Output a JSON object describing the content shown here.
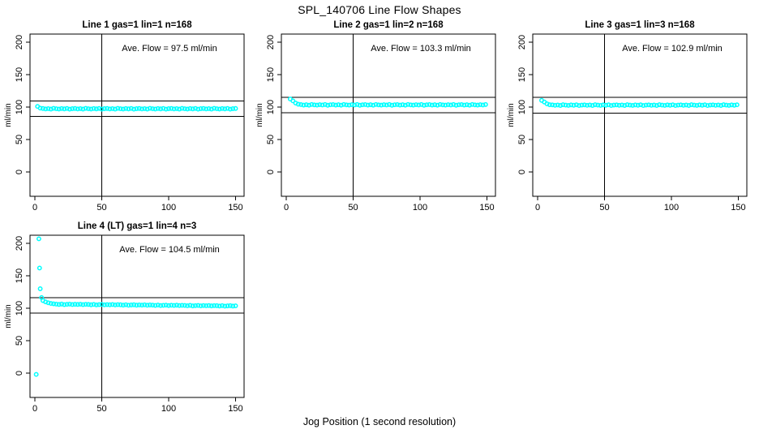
{
  "figure_title": "SPL_140706  Line Flow Shapes",
  "x_axis_label": "Jog Position (1 second resolution)",
  "y_axis_label": "ml/min",
  "colors": {
    "points": "#00ffff",
    "axis": "#000000",
    "background": "#ffffff"
  },
  "chart_data": [
    {
      "type": "scatter",
      "title": "Line 1 gas=1 lin=1 n=168",
      "annotation": "Ave. Flow =  97.5  ml/min",
      "ave_flow_ml_min": 97.5,
      "n_points": 168,
      "x_ticks": [
        0,
        50,
        100,
        150
      ],
      "y_ticks": [
        0,
        50,
        100,
        150,
        200
      ],
      "xlim": [
        -4,
        156
      ],
      "ylim": [
        -38,
        218
      ],
      "grid": false,
      "vertical_ref_line_x": 50,
      "upper_limit": 109.5,
      "lower_limit": 85.5,
      "x_start": 2,
      "x_step": 2,
      "y_values": [
        101.0,
        98.4,
        97.8,
        97.1,
        97.6,
        96.9,
        98.0,
        97.4,
        97.0,
        97.7,
        97.2,
        97.9,
        96.8,
        97.5,
        97.8,
        97.1,
        97.6,
        96.9,
        98.0,
        97.4,
        97.0,
        97.7,
        97.2,
        97.9,
        96.8,
        97.5,
        97.8,
        97.1,
        97.6,
        96.9,
        98.0,
        97.4,
        97.0,
        97.7,
        97.2,
        97.9,
        96.8,
        97.5,
        97.8,
        97.1,
        97.6,
        96.9,
        98.0,
        97.4,
        97.0,
        97.7,
        97.2,
        97.9,
        96.8,
        97.5,
        97.8,
        97.1,
        97.6,
        96.9,
        98.0,
        97.4,
        97.0,
        97.7,
        97.2,
        97.9,
        96.8,
        97.5,
        97.8,
        97.1,
        97.6,
        96.9,
        98.0,
        97.4,
        97.0,
        97.7,
        97.2,
        97.9,
        96.8,
        97.5,
        97.8
      ],
      "extra_points": []
    },
    {
      "type": "scatter",
      "title": "Line 2 gas=1 lin=2 n=168",
      "annotation": "Ave. Flow =  103.3  ml/min",
      "ave_flow_ml_min": 103.3,
      "n_points": 168,
      "x_ticks": [
        0,
        50,
        100,
        150
      ],
      "y_ticks": [
        0,
        50,
        100,
        150,
        200
      ],
      "xlim": [
        -4,
        156
      ],
      "ylim": [
        -38,
        218
      ],
      "grid": false,
      "vertical_ref_line_x": 50,
      "upper_limit": 115.3,
      "lower_limit": 91.3,
      "x_start": 3,
      "x_step": 2,
      "y_values": [
        112.4,
        109.6,
        106.2,
        104.4,
        103.8,
        103.1,
        103.6,
        102.9,
        104.0,
        103.4,
        103.0,
        103.7,
        103.2,
        103.9,
        102.8,
        103.5,
        103.8,
        103.1,
        103.6,
        102.9,
        104.0,
        103.4,
        103.0,
        103.7,
        103.2,
        103.9,
        102.8,
        103.5,
        103.8,
        103.1,
        103.6,
        102.9,
        104.0,
        103.4,
        103.0,
        103.7,
        103.2,
        103.9,
        102.8,
        103.5,
        103.8,
        103.1,
        103.6,
        102.9,
        104.0,
        103.4,
        103.0,
        103.7,
        103.2,
        103.9,
        102.8,
        103.5,
        103.8,
        103.1,
        103.6,
        102.9,
        104.0,
        103.4,
        103.0,
        103.7,
        103.2,
        103.9,
        102.8,
        103.5,
        103.8,
        103.1,
        103.6,
        102.9,
        104.0,
        103.4,
        103.0,
        103.7,
        103.2,
        103.9
      ],
      "extra_points": []
    },
    {
      "type": "scatter",
      "title": "Line 3 gas=1 lin=3 n=168",
      "annotation": "Ave. Flow =  102.9  ml/min",
      "ave_flow_ml_min": 102.9,
      "n_points": 168,
      "x_ticks": [
        0,
        50,
        100,
        150
      ],
      "y_ticks": [
        0,
        50,
        100,
        150,
        200
      ],
      "xlim": [
        -4,
        156
      ],
      "ylim": [
        -38,
        218
      ],
      "grid": false,
      "vertical_ref_line_x": 50,
      "upper_limit": 114.9,
      "lower_limit": 90.9,
      "x_start": 3,
      "x_step": 2,
      "y_values": [
        110.3,
        107.8,
        105.0,
        103.6,
        103.4,
        102.7,
        103.2,
        102.5,
        103.6,
        103.0,
        102.6,
        103.3,
        102.8,
        103.5,
        102.4,
        103.1,
        103.4,
        102.7,
        103.2,
        102.5,
        103.6,
        103.0,
        102.6,
        103.3,
        102.8,
        103.5,
        102.4,
        103.1,
        103.4,
        102.7,
        103.2,
        102.5,
        103.6,
        103.0,
        102.6,
        103.3,
        102.8,
        103.5,
        102.4,
        103.1,
        103.4,
        102.7,
        103.2,
        102.5,
        103.6,
        103.0,
        102.6,
        103.3,
        102.8,
        103.5,
        102.4,
        103.1,
        103.4,
        102.7,
        103.2,
        102.5,
        103.6,
        103.0,
        102.6,
        103.3,
        102.8,
        103.5,
        102.4,
        103.1,
        103.4,
        102.7,
        103.2,
        102.5,
        103.6,
        103.0,
        102.6,
        103.3,
        102.8,
        103.5
      ],
      "extra_points": []
    },
    {
      "type": "scatter",
      "title": "Line 4 (LT) gas=1 lin=4 n=3",
      "annotation": "Ave. Flow =  104.5  ml/min",
      "ave_flow_ml_min": 104.5,
      "n_points": 3,
      "x_ticks": [
        0,
        50,
        100,
        150
      ],
      "y_ticks": [
        0,
        50,
        100,
        150,
        200
      ],
      "xlim": [
        -4,
        156
      ],
      "ylim": [
        -38,
        218
      ],
      "grid": false,
      "vertical_ref_line_x": 50,
      "upper_limit": 116.5,
      "lower_limit": 92.5,
      "x_start": 6,
      "x_step": 2,
      "y_values": [
        111.8,
        109.8,
        108.4,
        107.4,
        106.8,
        106.3,
        105.8,
        106.4,
        105.6,
        106.0,
        106.3,
        105.7,
        106.1,
        105.8,
        106.2,
        105.6,
        106.0,
        105.8,
        105.3,
        105.9,
        105.1,
        105.5,
        105.8,
        105.2,
        105.6,
        105.3,
        105.7,
        105.1,
        105.5,
        105.3,
        104.8,
        105.4,
        104.6,
        105.0,
        105.3,
        104.7,
        105.1,
        104.8,
        105.2,
        104.6,
        105.0,
        104.8,
        104.3,
        104.9,
        104.1,
        104.5,
        104.8,
        104.2,
        104.6,
        104.3,
        104.7,
        104.1,
        104.5,
        104.3,
        103.8,
        104.4,
        103.6,
        104.0,
        104.3,
        103.7,
        104.1,
        103.8,
        104.2,
        103.6,
        104.0,
        103.9,
        103.4,
        104.0,
        103.2,
        103.6,
        103.9,
        103.3,
        103.7
      ],
      "extra_points": [
        [
          1,
          -2
        ],
        [
          3,
          207
        ],
        [
          3.5,
          162
        ],
        [
          4,
          130
        ],
        [
          5,
          116.5
        ]
      ]
    }
  ]
}
